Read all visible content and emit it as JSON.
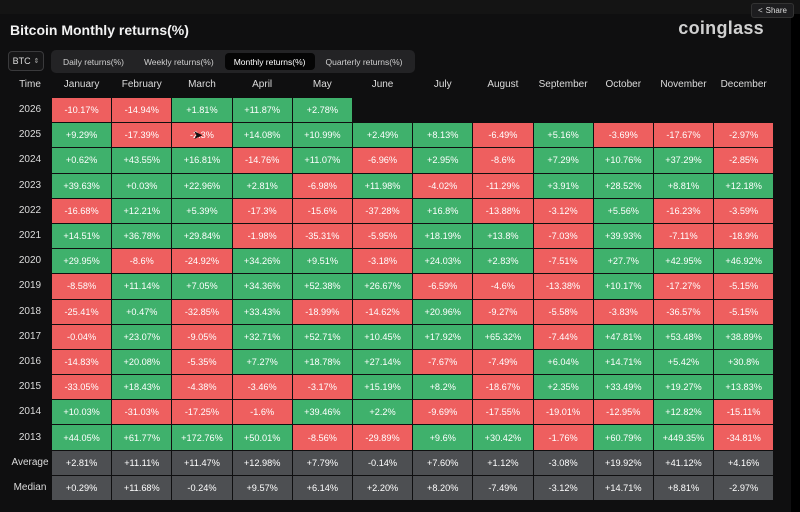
{
  "share_label": "Share",
  "title": "Bitcoin Monthly returns(%)",
  "logo": "coinglass",
  "asset": "BTC",
  "tabs": [
    "Daily returns(%)",
    "Weekly returns(%)",
    "Monthly returns(%)",
    "Quarterly returns(%)"
  ],
  "active_tab": 2,
  "time_label": "Time",
  "months": [
    "January",
    "February",
    "March",
    "April",
    "May",
    "June",
    "July",
    "August",
    "September",
    "October",
    "November",
    "December"
  ],
  "rows": [
    {
      "year": "2026",
      "values": [
        "-10.17%",
        "-14.94%",
        "+1.81%",
        "+11.87%",
        "+2.78%",
        "",
        "",
        "",
        "",
        "",
        "",
        ""
      ]
    },
    {
      "year": "2025",
      "values": [
        "+9.29%",
        "-17.39%",
        "-2.3%",
        "+14.08%",
        "+10.99%",
        "+2.49%",
        "+8.13%",
        "-6.49%",
        "+5.16%",
        "-3.69%",
        "-17.67%",
        "-2.97%"
      ]
    },
    {
      "year": "2024",
      "values": [
        "+0.62%",
        "+43.55%",
        "+16.81%",
        "-14.76%",
        "+11.07%",
        "-6.96%",
        "+2.95%",
        "-8.6%",
        "+7.29%",
        "+10.76%",
        "+37.29%",
        "-2.85%"
      ]
    },
    {
      "year": "2023",
      "values": [
        "+39.63%",
        "+0.03%",
        "+22.96%",
        "+2.81%",
        "-6.98%",
        "+11.98%",
        "-4.02%",
        "-11.29%",
        "+3.91%",
        "+28.52%",
        "+8.81%",
        "+12.18%"
      ]
    },
    {
      "year": "2022",
      "values": [
        "-16.68%",
        "+12.21%",
        "+5.39%",
        "-17.3%",
        "-15.6%",
        "-37.28%",
        "+16.8%",
        "-13.88%",
        "-3.12%",
        "+5.56%",
        "-16.23%",
        "-3.59%"
      ]
    },
    {
      "year": "2021",
      "values": [
        "+14.51%",
        "+36.78%",
        "+29.84%",
        "-1.98%",
        "-35.31%",
        "-5.95%",
        "+18.19%",
        "+13.8%",
        "-7.03%",
        "+39.93%",
        "-7.11%",
        "-18.9%"
      ]
    },
    {
      "year": "2020",
      "values": [
        "+29.95%",
        "-8.6%",
        "-24.92%",
        "+34.26%",
        "+9.51%",
        "-3.18%",
        "+24.03%",
        "+2.83%",
        "-7.51%",
        "+27.7%",
        "+42.95%",
        "+46.92%"
      ]
    },
    {
      "year": "2019",
      "values": [
        "-8.58%",
        "+11.14%",
        "+7.05%",
        "+34.36%",
        "+52.38%",
        "+26.67%",
        "-6.59%",
        "-4.6%",
        "-13.38%",
        "+10.17%",
        "-17.27%",
        "-5.15%"
      ]
    },
    {
      "year": "2018",
      "values": [
        "-25.41%",
        "+0.47%",
        "-32.85%",
        "+33.43%",
        "-18.99%",
        "-14.62%",
        "+20.96%",
        "-9.27%",
        "-5.58%",
        "-3.83%",
        "-36.57%",
        "-5.15%"
      ]
    },
    {
      "year": "2017",
      "values": [
        "-0.04%",
        "+23.07%",
        "-9.05%",
        "+32.71%",
        "+52.71%",
        "+10.45%",
        "+17.92%",
        "+65.32%",
        "-7.44%",
        "+47.81%",
        "+53.48%",
        "+38.89%"
      ]
    },
    {
      "year": "2016",
      "values": [
        "-14.83%",
        "+20.08%",
        "-5.35%",
        "+7.27%",
        "+18.78%",
        "+27.14%",
        "-7.67%",
        "-7.49%",
        "+6.04%",
        "+14.71%",
        "+5.42%",
        "+30.8%"
      ]
    },
    {
      "year": "2015",
      "values": [
        "-33.05%",
        "+18.43%",
        "-4.38%",
        "-3.46%",
        "-3.17%",
        "+15.19%",
        "+8.2%",
        "-18.67%",
        "+2.35%",
        "+33.49%",
        "+19.27%",
        "+13.83%"
      ]
    },
    {
      "year": "2014",
      "values": [
        "+10.03%",
        "-31.03%",
        "-17.25%",
        "-1.6%",
        "+39.46%",
        "+2.2%",
        "-9.69%",
        "-17.55%",
        "-19.01%",
        "-12.95%",
        "+12.82%",
        "-15.11%"
      ]
    },
    {
      "year": "2013",
      "values": [
        "+44.05%",
        "+61.77%",
        "+172.76%",
        "+50.01%",
        "-8.56%",
        "-29.89%",
        "+9.6%",
        "+30.42%",
        "-1.76%",
        "+60.79%",
        "+449.35%",
        "-34.81%"
      ]
    }
  ],
  "summary": [
    {
      "label": "Average",
      "values": [
        "+2.81%",
        "+11.11%",
        "+11.47%",
        "+12.98%",
        "+7.79%",
        "-0.14%",
        "+7.60%",
        "+1.12%",
        "-3.08%",
        "+19.92%",
        "+41.12%",
        "+4.16%"
      ]
    },
    {
      "label": "Median",
      "values": [
        "+0.29%",
        "+11.68%",
        "-0.24%",
        "+9.57%",
        "+6.14%",
        "+2.20%",
        "+8.20%",
        "-7.49%",
        "-3.12%",
        "+14.71%",
        "+8.81%",
        "-2.97%"
      ]
    }
  ],
  "colors": {
    "positive": "#3fb16c",
    "negative": "#ee5f5f",
    "summary": "#4d4f52"
  }
}
